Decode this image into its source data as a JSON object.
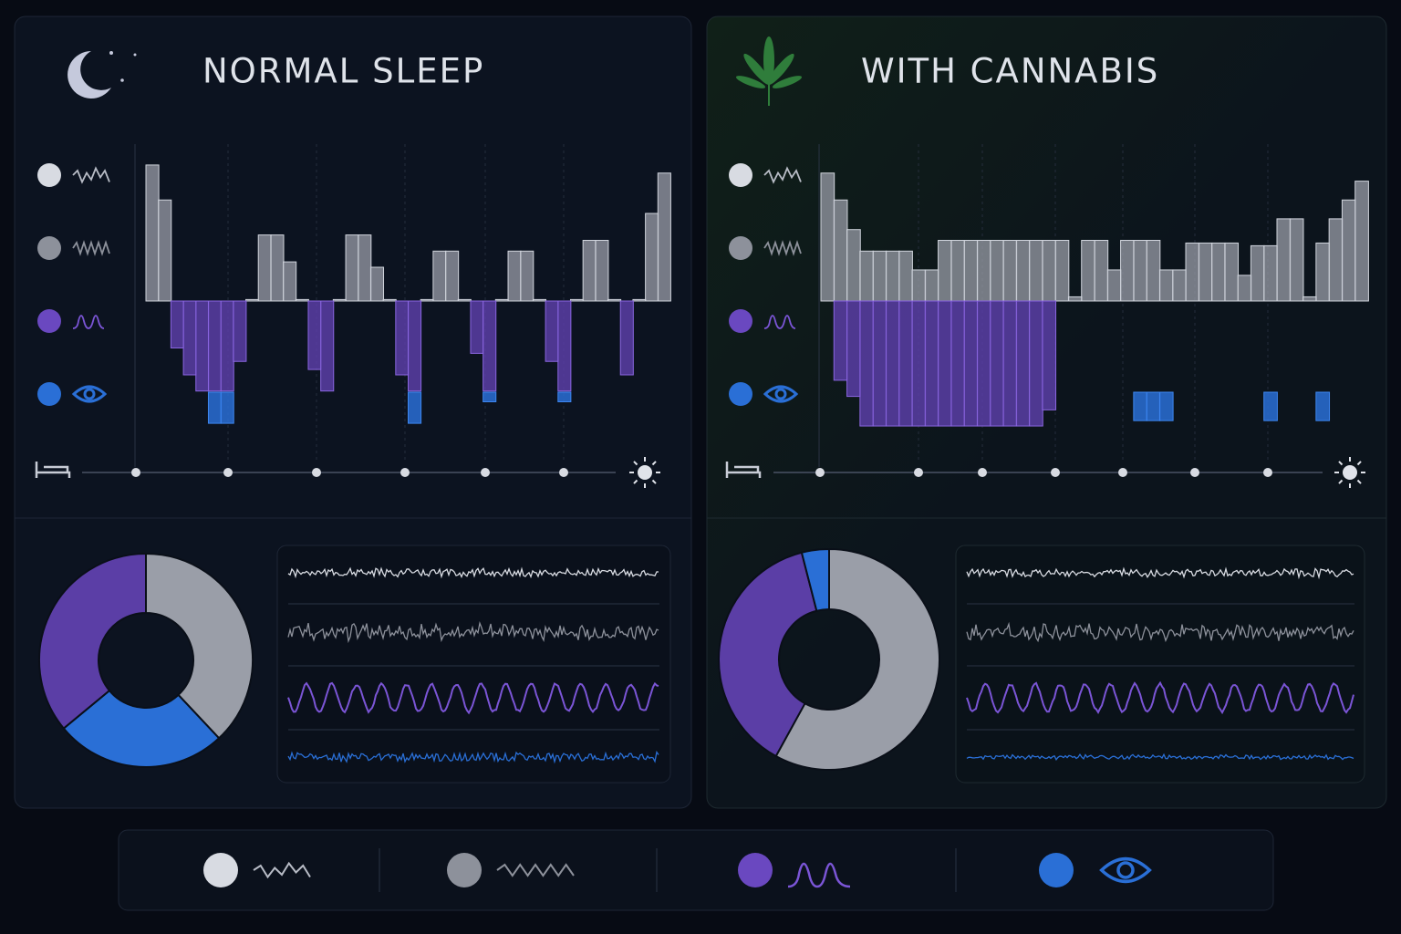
{
  "chart_data": [
    {
      "type": "hypnogram",
      "title": "NORMAL SLEEP",
      "ylim": [
        0,
        10
      ],
      "series": [
        {
          "color": "#9a9ea8",
          "values": [
            9.8,
            8.5,
            null,
            null,
            null,
            null,
            null,
            null,
            4.8,
            7.2,
            7.2,
            6.2,
            4.8,
            null,
            null,
            4.8,
            7.2,
            7.2,
            6,
            4.8,
            null,
            null,
            4.8,
            6.6,
            6.6,
            4.8,
            null,
            null,
            4.8,
            6.6,
            6.6,
            4.8,
            null,
            null,
            4.8,
            7,
            7,
            4.8,
            null,
            4.8,
            8,
            9.5
          ]
        },
        {
          "color": "#5b3ea6",
          "values": [
            null,
            null,
            3,
            2,
            1.4,
            1.4,
            1.4,
            2.5,
            null,
            null,
            null,
            null,
            null,
            2.2,
            1.4,
            null,
            null,
            null,
            null,
            null,
            2,
            1.4,
            null,
            null,
            null,
            null,
            2.8,
            1.4,
            null,
            null,
            null,
            null,
            2.5,
            1.4,
            null,
            null,
            null,
            null,
            2,
            null,
            null,
            null
          ]
        },
        {
          "color": "#2a6fd6",
          "values": [
            null,
            null,
            null,
            null,
            null,
            0.2,
            0.2,
            null,
            null,
            null,
            null,
            null,
            null,
            null,
            null,
            null,
            null,
            null,
            null,
            null,
            null,
            0.2,
            null,
            null,
            null,
            null,
            null,
            1,
            null,
            null,
            null,
            null,
            null,
            1,
            null,
            null,
            null,
            null,
            null,
            null,
            null,
            null
          ]
        }
      ]
    },
    {
      "type": "pie",
      "values": [
        38,
        26,
        36
      ],
      "colors": [
        "#9a9ea8",
        "#2a6fd6",
        "#5b3ea6"
      ]
    },
    {
      "type": "hypnogram",
      "title": "WITH CANNABIS",
      "ylim": [
        0,
        10
      ],
      "series": [
        {
          "color": "#9a9ea8",
          "values": [
            9.5,
            8.5,
            7.4,
            6.6,
            6.6,
            6.6,
            6.6,
            5.9,
            5.9,
            7,
            7,
            7,
            7,
            7,
            7,
            7,
            7,
            7,
            7,
            4.9,
            7,
            7,
            5.9,
            7,
            7,
            7,
            5.9,
            5.9,
            6.9,
            6.9,
            6.9,
            6.9,
            5.7,
            6.8,
            6.8,
            7.8,
            7.8,
            4.9,
            6.9,
            7.8,
            8.5,
            9.2
          ]
        },
        {
          "color": "#5b3ea6",
          "values": [
            null,
            1.8,
            1.2,
            0.1,
            0.1,
            0.1,
            0.1,
            0.1,
            0.1,
            0.1,
            0.1,
            0.1,
            0.1,
            0.1,
            0.1,
            0.1,
            0.1,
            0.7,
            null,
            null,
            null,
            null,
            null,
            null,
            null,
            null,
            null,
            null,
            null,
            null,
            null,
            null,
            null,
            null,
            null,
            null,
            null,
            null,
            null,
            null,
            null,
            null
          ]
        },
        {
          "color": "#2a6fd6",
          "values": [
            null,
            null,
            null,
            null,
            null,
            null,
            null,
            null,
            null,
            null,
            null,
            null,
            null,
            null,
            null,
            null,
            null,
            null,
            null,
            null,
            null,
            null,
            null,
            null,
            0.3,
            0.3,
            0.3,
            null,
            null,
            null,
            null,
            null,
            null,
            null,
            0.3,
            null,
            null,
            null,
            0.3,
            null,
            null,
            null
          ]
        }
      ]
    },
    {
      "type": "pie",
      "values": [
        58,
        38,
        4
      ],
      "colors": [
        "#9a9ea8",
        "#5b3ea6",
        "#2a6fd6"
      ]
    }
  ]
}
